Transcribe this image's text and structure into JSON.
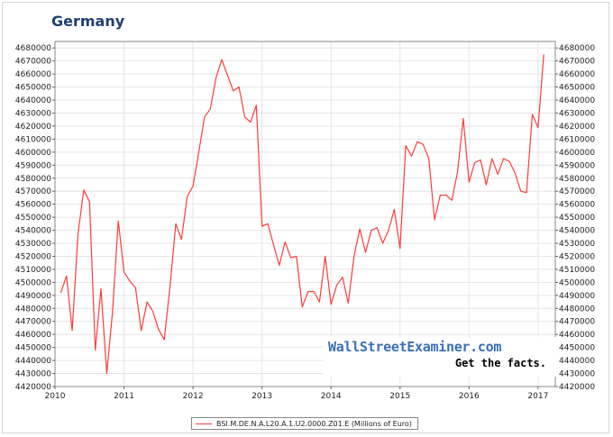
{
  "title": "Germany",
  "watermark": {
    "site": "WallStreetExaminer.com",
    "tagline": "Get the facts."
  },
  "legend": {
    "label": "BSI.M.DE.N.A.L20.A.1.U2.0000.Z01.E (Millions of Euro)",
    "color": "#ff3b3b"
  },
  "chart_data": {
    "type": "line",
    "title": "Germany",
    "xlabel": "",
    "ylabel": "",
    "xlim": [
      2010,
      2017.25
    ],
    "ylim": [
      4420000,
      4685000
    ],
    "grid": true,
    "legend_position": "bottom-center",
    "x_ticks": [
      2010,
      2011,
      2012,
      2013,
      2014,
      2015,
      2016,
      2017
    ],
    "y_ticks": [
      4420000,
      4430000,
      4440000,
      4450000,
      4460000,
      4470000,
      4480000,
      4490000,
      4500000,
      4510000,
      4520000,
      4530000,
      4540000,
      4550000,
      4560000,
      4570000,
      4580000,
      4590000,
      4600000,
      4610000,
      4620000,
      4630000,
      4640000,
      4650000,
      4660000,
      4670000,
      4680000
    ],
    "series": [
      {
        "name": "BSI.M.DE.N.A.L20.A.1.U2.0000.Z01.E (Millions of Euro)",
        "color": "#ff3b3b",
        "points": [
          [
            "2010-02",
            4492000
          ],
          [
            "2010-03",
            4505000
          ],
          [
            "2010-04",
            4463000
          ],
          [
            "2010-05",
            4537000
          ],
          [
            "2010-06",
            4571000
          ],
          [
            "2010-07",
            4562000
          ],
          [
            "2010-08",
            4448000
          ],
          [
            "2010-09",
            4495000
          ],
          [
            "2010-10",
            4430000
          ],
          [
            "2010-11",
            4477000
          ],
          [
            "2010-12",
            4547000
          ],
          [
            "2011-01",
            4508000
          ],
          [
            "2011-02",
            4501000
          ],
          [
            "2011-03",
            4496000
          ],
          [
            "2011-04",
            4463000
          ],
          [
            "2011-05",
            4485000
          ],
          [
            "2011-06",
            4478000
          ],
          [
            "2011-07",
            4464000
          ],
          [
            "2011-08",
            4456000
          ],
          [
            "2011-09",
            4497000
          ],
          [
            "2011-10",
            4545000
          ],
          [
            "2011-11",
            4533000
          ],
          [
            "2011-12",
            4566000
          ],
          [
            "2012-01",
            4574000
          ],
          [
            "2012-02",
            4600000
          ],
          [
            "2012-03",
            4627000
          ],
          [
            "2012-04",
            4633000
          ],
          [
            "2012-05",
            4657000
          ],
          [
            "2012-06",
            4671000
          ],
          [
            "2012-07",
            4659000
          ],
          [
            "2012-08",
            4647000
          ],
          [
            "2012-09",
            4650000
          ],
          [
            "2012-10",
            4627000
          ],
          [
            "2012-11",
            4623000
          ],
          [
            "2012-12",
            4636000
          ],
          [
            "2013-01",
            4543000
          ],
          [
            "2013-02",
            4545000
          ],
          [
            "2013-03",
            4529000
          ],
          [
            "2013-04",
            4513000
          ],
          [
            "2013-05",
            4531000
          ],
          [
            "2013-06",
            4519000
          ],
          [
            "2013-07",
            4520000
          ],
          [
            "2013-08",
            4481000
          ],
          [
            "2013-09",
            4493000
          ],
          [
            "2013-10",
            4493000
          ],
          [
            "2013-11",
            4485000
          ],
          [
            "2013-12",
            4520000
          ],
          [
            "2014-01",
            4483000
          ],
          [
            "2014-02",
            4498000
          ],
          [
            "2014-03",
            4504000
          ],
          [
            "2014-04",
            4484000
          ],
          [
            "2014-05",
            4520000
          ],
          [
            "2014-06",
            4541000
          ],
          [
            "2014-07",
            4523000
          ],
          [
            "2014-08",
            4540000
          ],
          [
            "2014-09",
            4542000
          ],
          [
            "2014-10",
            4530000
          ],
          [
            "2014-11",
            4540000
          ],
          [
            "2014-12",
            4556000
          ],
          [
            "2015-01",
            4526000
          ],
          [
            "2015-02",
            4605000
          ],
          [
            "2015-03",
            4597000
          ],
          [
            "2015-04",
            4608000
          ],
          [
            "2015-05",
            4606000
          ],
          [
            "2015-06",
            4595000
          ],
          [
            "2015-07",
            4548000
          ],
          [
            "2015-08",
            4567000
          ],
          [
            "2015-09",
            4567000
          ],
          [
            "2015-10",
            4563000
          ],
          [
            "2015-11",
            4585000
          ],
          [
            "2015-12",
            4626000
          ],
          [
            "2016-01",
            4577000
          ],
          [
            "2016-02",
            4592000
          ],
          [
            "2016-03",
            4594000
          ],
          [
            "2016-04",
            4575000
          ],
          [
            "2016-05",
            4595000
          ],
          [
            "2016-06",
            4583000
          ],
          [
            "2016-07",
            4595000
          ],
          [
            "2016-08",
            4593000
          ],
          [
            "2016-09",
            4584000
          ],
          [
            "2016-10",
            4570000
          ],
          [
            "2016-11",
            4569000
          ],
          [
            "2016-12",
            4629000
          ],
          [
            "2017-01",
            4619000
          ],
          [
            "2017-02",
            4675000
          ]
        ]
      }
    ]
  }
}
